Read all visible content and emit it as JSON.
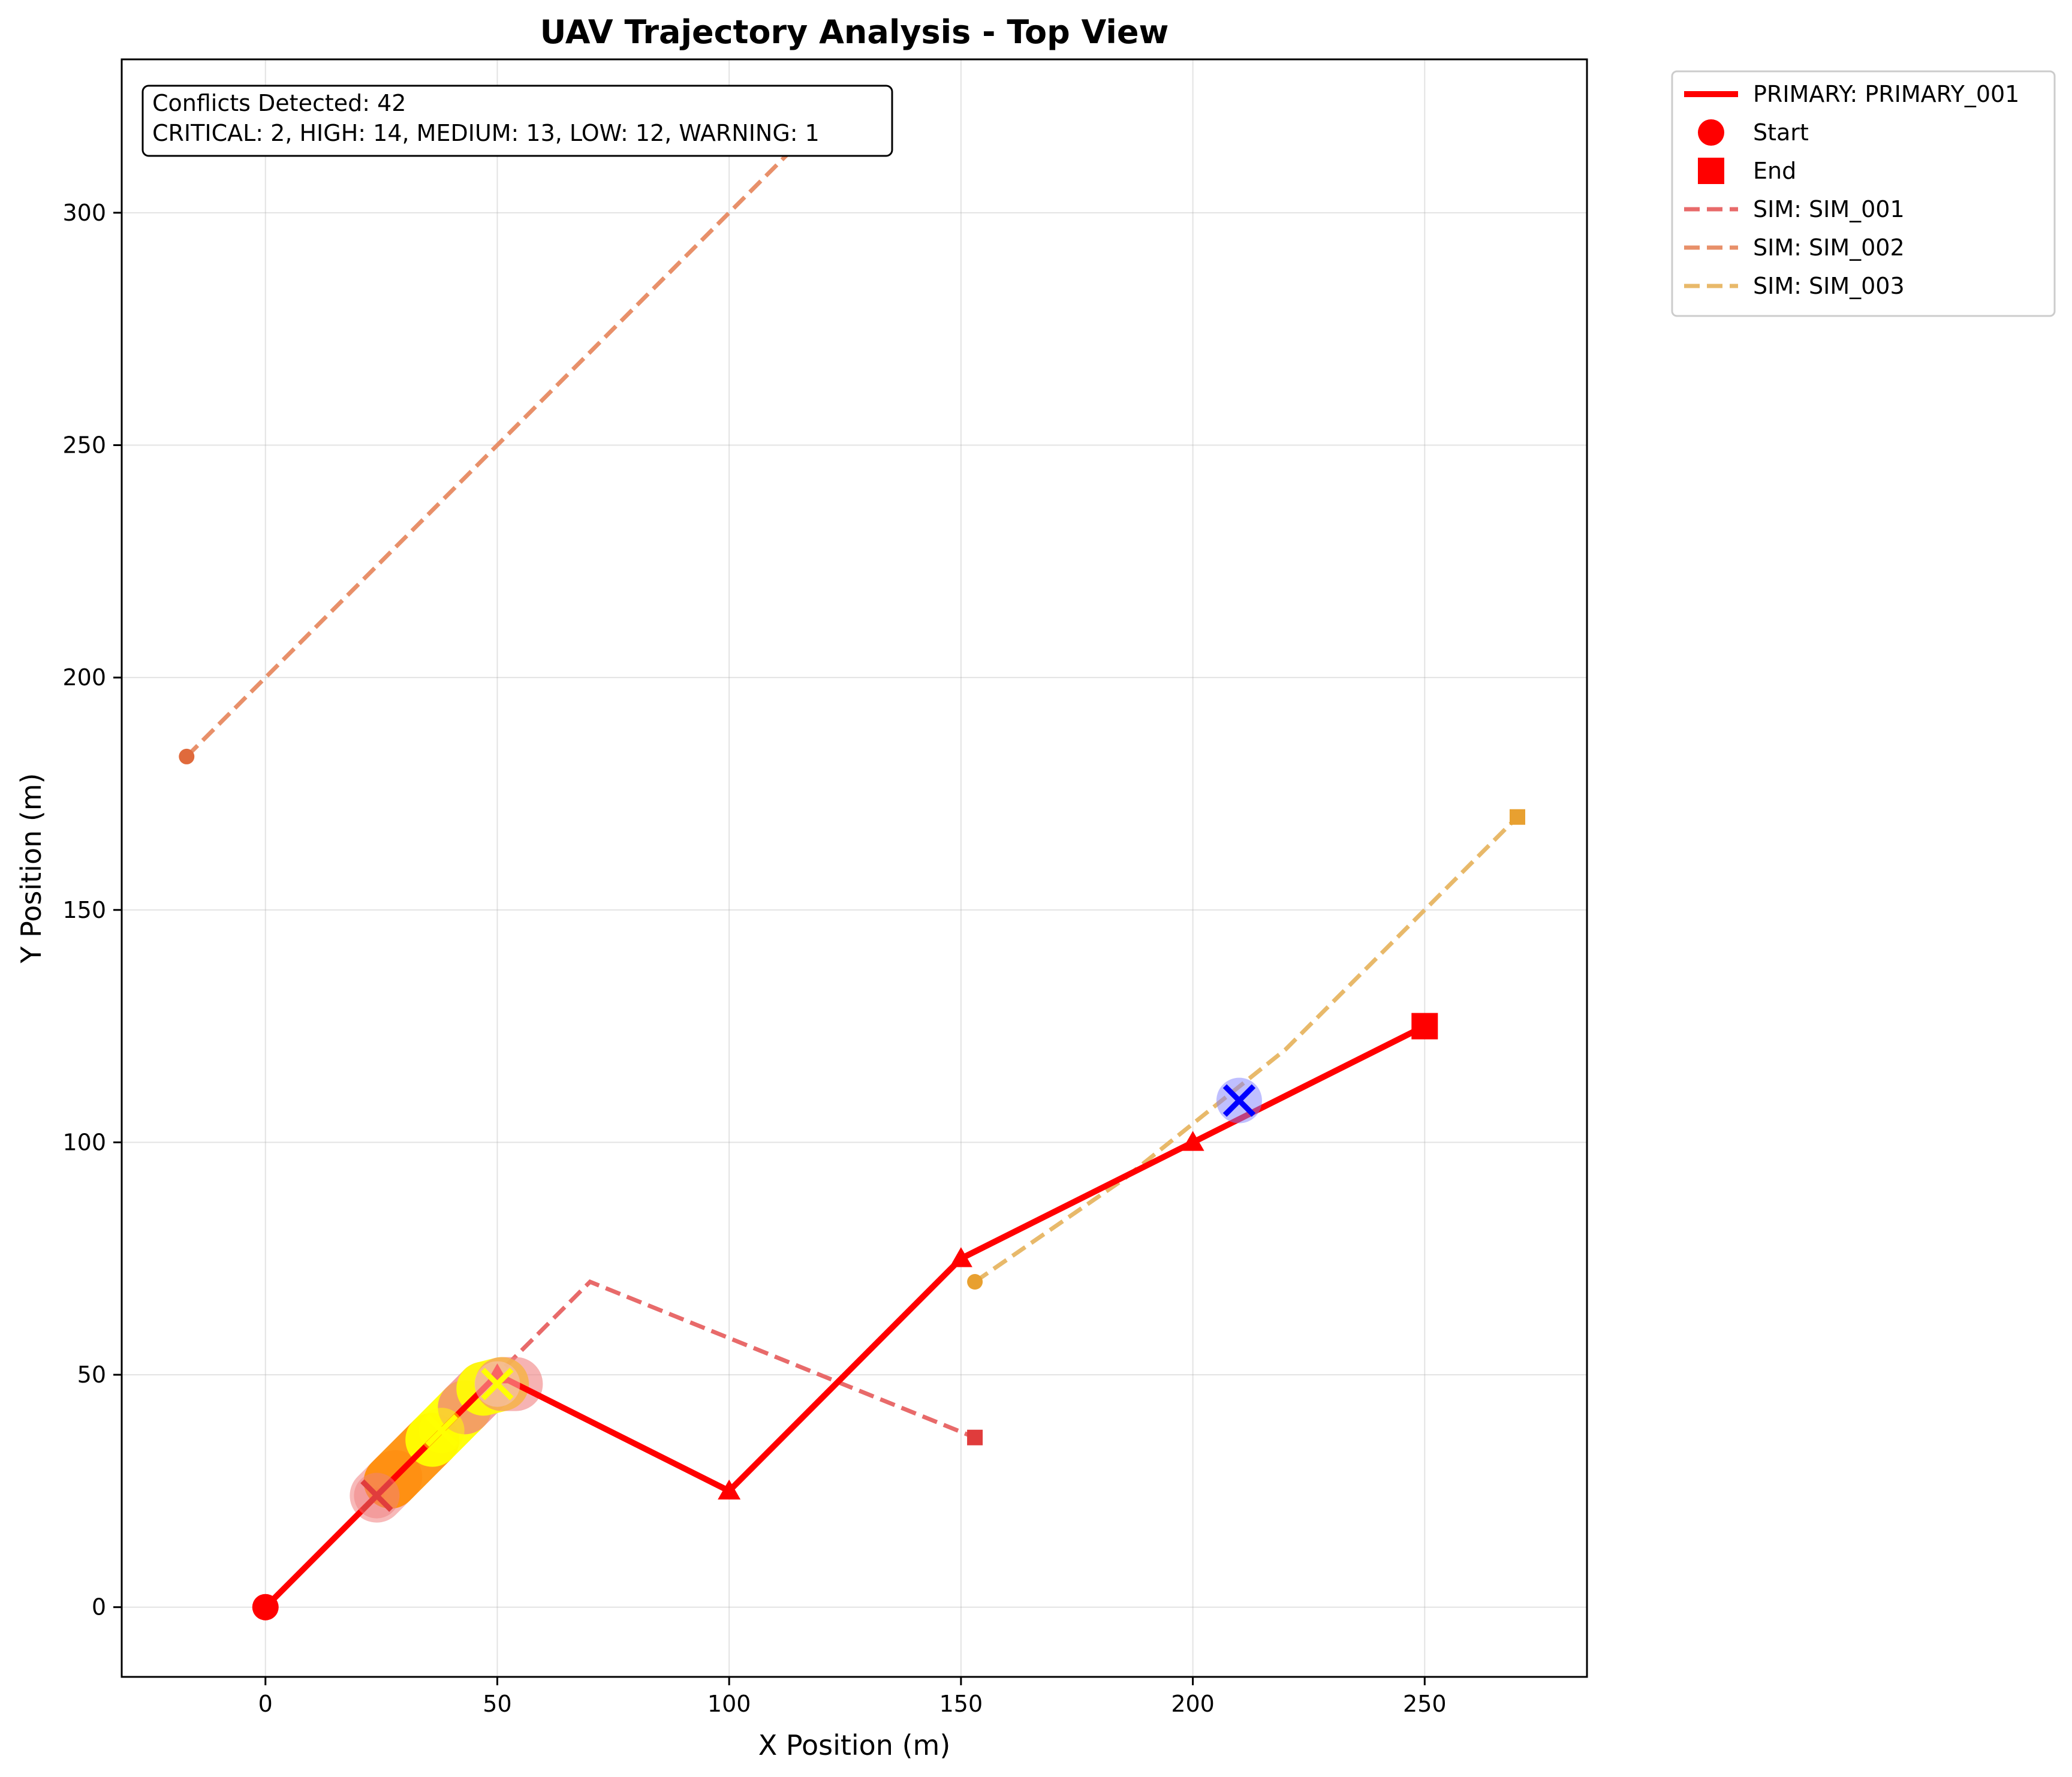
{
  "chart_data": {
    "type": "line",
    "title": "UAV Trajectory Analysis - Top View",
    "xlabel": "X Position (m)",
    "ylabel": "Y Position (m)",
    "xlim": [
      -31,
      285
    ],
    "ylim": [
      -15,
      333
    ],
    "xticks": [
      0,
      50,
      100,
      150,
      200,
      250
    ],
    "yticks": [
      0,
      50,
      100,
      150,
      200,
      250,
      300
    ],
    "grid": true,
    "legend_position": "outside-top-right",
    "annotation": {
      "line1": "Conflicts Detected: 42",
      "line2": "CRITICAL: 2, HIGH: 14, MEDIUM: 13, LOW: 12, WARNING: 1"
    },
    "legend": [
      {
        "label": "PRIMARY: PRIMARY_001",
        "kind": "line-solid",
        "color": "#ff0000"
      },
      {
        "label": "Start",
        "kind": "circle",
        "color": "#ff0000"
      },
      {
        "label": "End",
        "kind": "square",
        "color": "#ff0000"
      },
      {
        "label": "SIM: SIM_001",
        "kind": "line-dashed",
        "color": "#e86a6a"
      },
      {
        "label": "SIM: SIM_002",
        "kind": "line-dashed",
        "color": "#e8906a"
      },
      {
        "label": "SIM: SIM_003",
        "kind": "line-dashed",
        "color": "#e8b96a"
      }
    ],
    "primary": {
      "name": "PRIMARY_001",
      "color": "#ff0000",
      "points": [
        [
          0,
          0
        ],
        [
          50,
          50
        ],
        [
          100,
          25
        ],
        [
          150,
          75
        ],
        [
          200,
          100
        ],
        [
          250,
          125
        ]
      ],
      "waypoints": [
        [
          50,
          50
        ],
        [
          100,
          25
        ],
        [
          150,
          75
        ],
        [
          200,
          100
        ]
      ]
    },
    "sims": [
      {
        "name": "SIM_001",
        "color": "#e86a6a",
        "start_color": "#e8706a",
        "end_color": "#e03c3c",
        "points": [
          [
            24,
            24
          ],
          [
            70,
            70
          ],
          [
            153,
            36.5
          ]
        ]
      },
      {
        "name": "SIM_002",
        "color": "#e8906a",
        "start_color": "#e06a3c",
        "end_color": "#e06a3c",
        "points": [
          [
            -17,
            183
          ],
          [
            117,
            317
          ]
        ]
      },
      {
        "name": "SIM_003",
        "color": "#e8b96a",
        "start_color": "#e8a030",
        "end_color": "#e8a030",
        "points": [
          [
            153,
            70
          ],
          [
            185,
            92
          ],
          [
            220,
            120
          ],
          [
            270,
            170
          ]
        ]
      }
    ],
    "conflict_segments": [
      {
        "severity": "LOW",
        "from": [
          24,
          24
        ],
        "to": [
          28,
          28
        ],
        "color": "#f08080",
        "alpha": 0.55
      },
      {
        "severity": "HIGH",
        "from": [
          27,
          27
        ],
        "to": [
          36,
          36
        ],
        "color": "#ff8c00",
        "alpha": 0.9
      },
      {
        "severity": "MEDIUM",
        "from": [
          36,
          36
        ],
        "to": [
          43,
          43
        ],
        "color": "#ffff00",
        "alpha": 0.95
      },
      {
        "severity": "LOW",
        "from": [
          43,
          43
        ],
        "to": [
          47,
          47
        ],
        "color": "#f08080",
        "alpha": 0.75
      },
      {
        "severity": "MEDIUM",
        "from": [
          47,
          47
        ],
        "to": [
          51,
          48
        ],
        "color": "#ffff00",
        "alpha": 0.9
      },
      {
        "severity": "LOW",
        "from": [
          51,
          48
        ],
        "to": [
          54,
          48
        ],
        "color": "#f08080",
        "alpha": 0.6
      }
    ],
    "conflict_markers": [
      {
        "severity": "LOW",
        "x": 24,
        "y": 24,
        "color": "#e03c3c",
        "halo": "#f08080"
      },
      {
        "severity": "MEDIUM",
        "x": 38,
        "y": 38,
        "color": "#ffff00",
        "halo": "#ffff00"
      },
      {
        "severity": "MEDIUM",
        "x": 50,
        "y": 48,
        "color": "#ffff00",
        "halo": "#f4c8c8"
      },
      {
        "severity": "WARNING",
        "x": 210,
        "y": 109,
        "color": "#0000ff",
        "halo": "#8080ff"
      }
    ]
  }
}
